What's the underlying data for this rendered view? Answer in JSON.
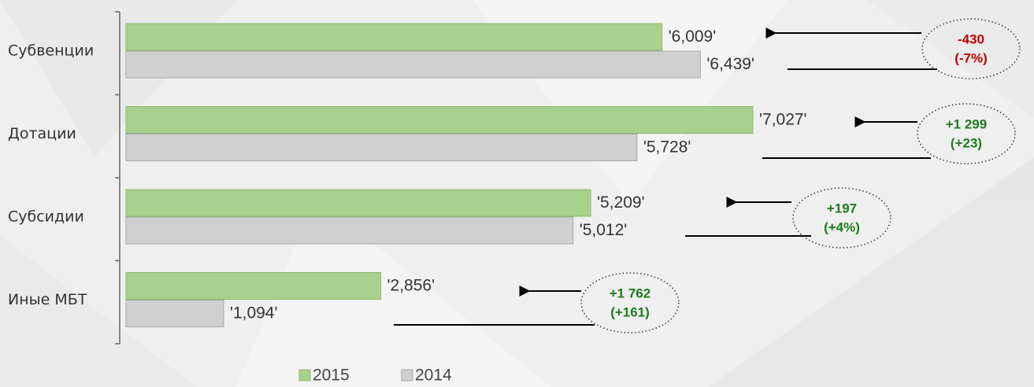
{
  "chart_data": {
    "type": "bar",
    "orientation": "horizontal",
    "categories": [
      "Субвенции",
      "Дотации",
      "Субсидии",
      "Иные МБТ"
    ],
    "series": [
      {
        "name": "2015",
        "color": "#a9d18e",
        "values": [
          6009,
          7027,
          5209,
          2856
        ],
        "value_labels": [
          "'6,009'",
          "'7,027'",
          "'5,209'",
          "'2,856'"
        ]
      },
      {
        "name": "2014",
        "color": "#d0d0d0",
        "values": [
          6439,
          5728,
          5012,
          1094
        ],
        "value_labels": [
          "'6,439'",
          "'5,728'",
          "'5,012'",
          "'1,094'"
        ]
      }
    ],
    "annotations": [
      {
        "lines": [
          "-430",
          "(-7%)"
        ],
        "color": "#c00000"
      },
      {
        "lines": [
          "+1 299",
          "(+23)"
        ],
        "color": "#1e7b1e"
      },
      {
        "lines": [
          "+197",
          "(+4%)"
        ],
        "color": "#1e7b1e"
      },
      {
        "lines": [
          "+1 762",
          "(+161)"
        ],
        "color": "#1e7b1e"
      }
    ]
  }
}
